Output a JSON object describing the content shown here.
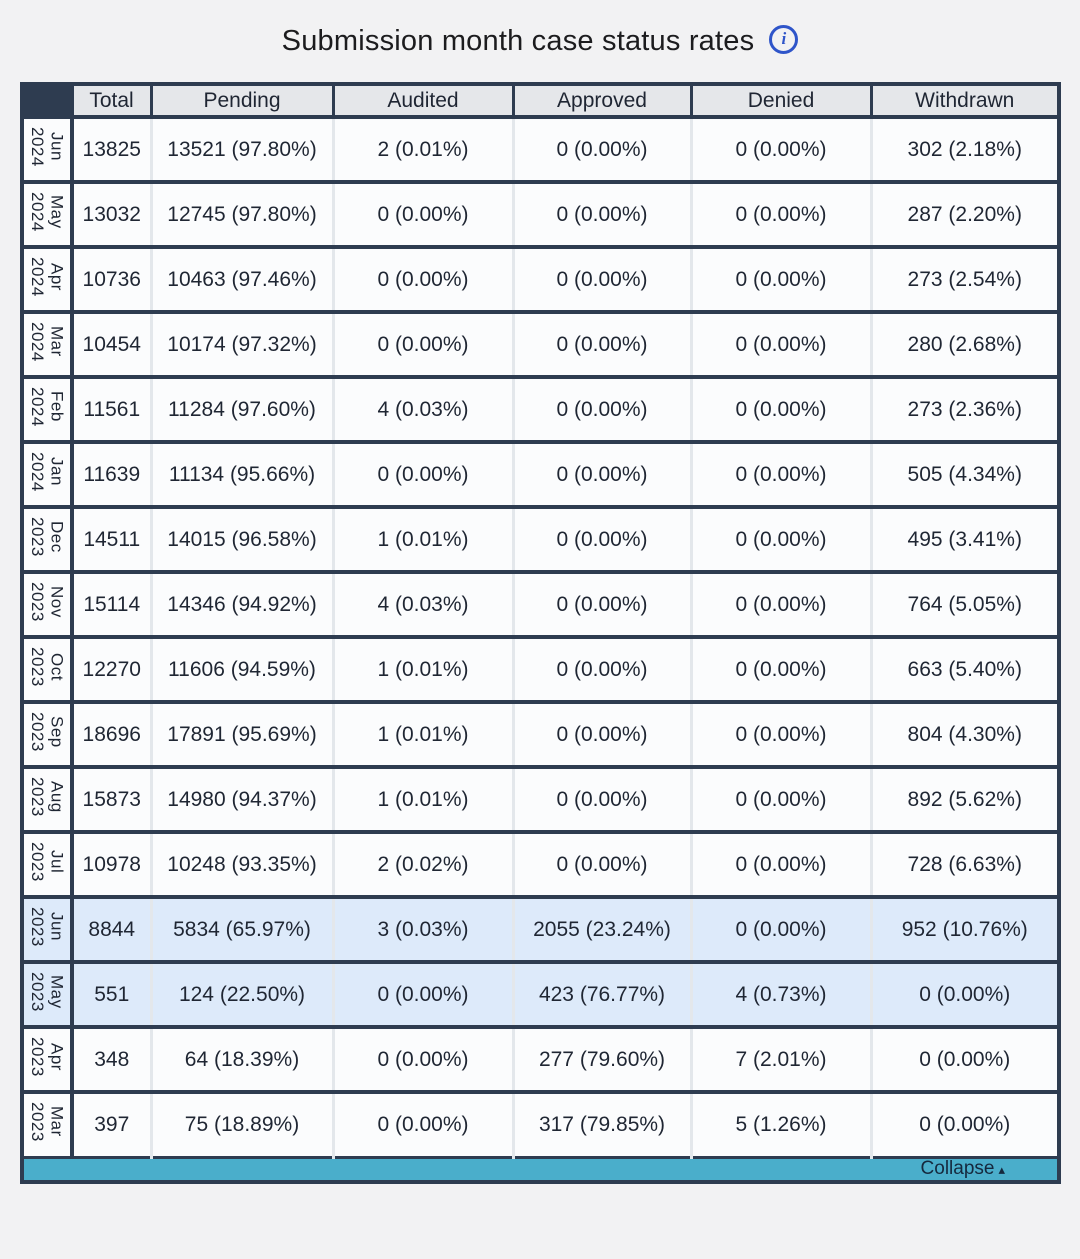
{
  "header": {
    "title": "Submission month case status rates",
    "info_icon_glyph": "i"
  },
  "table": {
    "columns": [
      "Total",
      "Pending",
      "Audited",
      "Approved",
      "Denied",
      "Withdrawn"
    ],
    "rows": [
      {
        "month": "Jun",
        "year": "2024",
        "highlighted": false,
        "cells": [
          "13825",
          "13521 (97.80%)",
          "2 (0.01%)",
          "0 (0.00%)",
          "0 (0.00%)",
          "302 (2.18%)"
        ]
      },
      {
        "month": "May",
        "year": "2024",
        "highlighted": false,
        "cells": [
          "13032",
          "12745 (97.80%)",
          "0 (0.00%)",
          "0 (0.00%)",
          "0 (0.00%)",
          "287 (2.20%)"
        ]
      },
      {
        "month": "Apr",
        "year": "2024",
        "highlighted": false,
        "cells": [
          "10736",
          "10463 (97.46%)",
          "0 (0.00%)",
          "0 (0.00%)",
          "0 (0.00%)",
          "273 (2.54%)"
        ]
      },
      {
        "month": "Mar",
        "year": "2024",
        "highlighted": false,
        "cells": [
          "10454",
          "10174 (97.32%)",
          "0 (0.00%)",
          "0 (0.00%)",
          "0 (0.00%)",
          "280 (2.68%)"
        ]
      },
      {
        "month": "Feb",
        "year": "2024",
        "highlighted": false,
        "cells": [
          "11561",
          "11284 (97.60%)",
          "4 (0.03%)",
          "0 (0.00%)",
          "0 (0.00%)",
          "273 (2.36%)"
        ]
      },
      {
        "month": "Jan",
        "year": "2024",
        "highlighted": false,
        "cells": [
          "11639",
          "11134 (95.66%)",
          "0 (0.00%)",
          "0 (0.00%)",
          "0 (0.00%)",
          "505 (4.34%)"
        ]
      },
      {
        "month": "Dec",
        "year": "2023",
        "highlighted": false,
        "cells": [
          "14511",
          "14015 (96.58%)",
          "1 (0.01%)",
          "0 (0.00%)",
          "0 (0.00%)",
          "495 (3.41%)"
        ]
      },
      {
        "month": "Nov",
        "year": "2023",
        "highlighted": false,
        "cells": [
          "15114",
          "14346 (94.92%)",
          "4 (0.03%)",
          "0 (0.00%)",
          "0 (0.00%)",
          "764 (5.05%)"
        ]
      },
      {
        "month": "Oct",
        "year": "2023",
        "highlighted": false,
        "cells": [
          "12270",
          "11606 (94.59%)",
          "1 (0.01%)",
          "0 (0.00%)",
          "0 (0.00%)",
          "663 (5.40%)"
        ]
      },
      {
        "month": "Sep",
        "year": "2023",
        "highlighted": false,
        "cells": [
          "18696",
          "17891 (95.69%)",
          "1 (0.01%)",
          "0 (0.00%)",
          "0 (0.00%)",
          "804 (4.30%)"
        ]
      },
      {
        "month": "Aug",
        "year": "2023",
        "highlighted": false,
        "cells": [
          "15873",
          "14980 (94.37%)",
          "1 (0.01%)",
          "0 (0.00%)",
          "0 (0.00%)",
          "892 (5.62%)"
        ]
      },
      {
        "month": "Jul",
        "year": "2023",
        "highlighted": false,
        "cells": [
          "10978",
          "10248 (93.35%)",
          "2 (0.02%)",
          "0 (0.00%)",
          "0 (0.00%)",
          "728 (6.63%)"
        ]
      },
      {
        "month": "Jun",
        "year": "2023",
        "highlighted": true,
        "cells": [
          "8844",
          "5834 (65.97%)",
          "3 (0.03%)",
          "2055 (23.24%)",
          "0 (0.00%)",
          "952 (10.76%)"
        ]
      },
      {
        "month": "May",
        "year": "2023",
        "highlighted": true,
        "cells": [
          "551",
          "124 (22.50%)",
          "0 (0.00%)",
          "423 (76.77%)",
          "4 (0.73%)",
          "0 (0.00%)"
        ]
      },
      {
        "month": "Apr",
        "year": "2023",
        "highlighted": false,
        "cells": [
          "348",
          "64 (18.39%)",
          "0 (0.00%)",
          "277 (79.60%)",
          "7 (2.01%)",
          "0 (0.00%)"
        ]
      },
      {
        "month": "Mar",
        "year": "2023",
        "highlighted": false,
        "cells": [
          "397",
          "75 (18.89%)",
          "0 (0.00%)",
          "317 (79.85%)",
          "5 (1.26%)",
          "0 (0.00%)"
        ]
      }
    ]
  },
  "footer": {
    "collapse_label": "Collapse",
    "collapse_icon": "▴"
  },
  "colors": {
    "border_dark": "#2e3c50",
    "header_bg": "#e5e7ea",
    "highlight_row_bg": "#ddeafa",
    "collapse_bar_teal": "#4aaecb",
    "info_icon_blue": "#2f55c9",
    "page_bg": "#f2f2f3"
  }
}
